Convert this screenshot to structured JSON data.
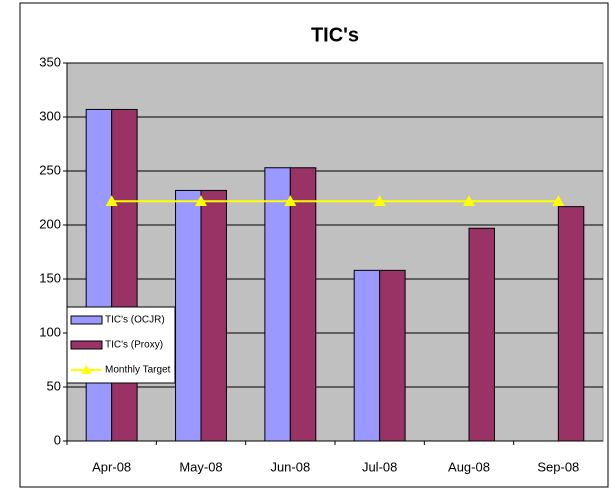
{
  "chart_data": {
    "type": "bar",
    "title": "TIC's",
    "categories": [
      "Apr-08",
      "May-08",
      "Jun-08",
      "Jul-08",
      "Aug-08",
      "Sep-08"
    ],
    "series": [
      {
        "name": "TIC's (OCJR)",
        "type": "bar",
        "color": "#9999ff",
        "values": [
          307,
          232,
          253,
          158,
          null,
          null
        ]
      },
      {
        "name": "TIC's (Proxy)",
        "type": "bar",
        "color": "#993366",
        "values": [
          307,
          232,
          253,
          158,
          197,
          217
        ]
      },
      {
        "name": "Monthly Target",
        "type": "line",
        "color": "#ffff00",
        "values": [
          222,
          222,
          222,
          222,
          222,
          222
        ]
      }
    ],
    "ylim": [
      0,
      350
    ],
    "yticks": [
      0,
      50,
      100,
      150,
      200,
      250,
      300,
      350
    ],
    "grid": true,
    "legend": "lower left",
    "plot_background": "#c0c0c0"
  }
}
